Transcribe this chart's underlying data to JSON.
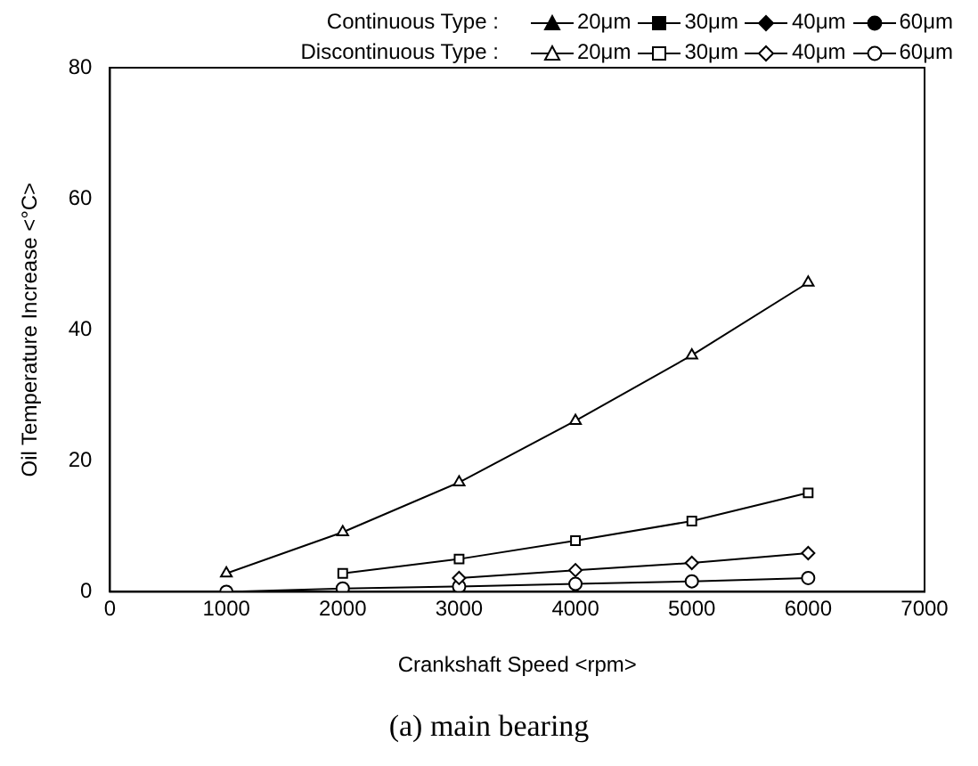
{
  "chart_data": {
    "type": "line",
    "xlabel": "Crankshaft Speed <rpm>",
    "ylabel": "Oil Temperature Increase <°C>",
    "x": [
      1000,
      2000,
      3000,
      4000,
      5000,
      6000
    ],
    "series": [
      {
        "name": "20μm",
        "color": "#000000",
        "marker": "triangle",
        "values": [
          null,
          null,
          null,
          null,
          null,
          null
        ]
      },
      {
        "name": "30μm",
        "color": "#000000",
        "marker": "square",
        "values": [
          null,
          null,
          null,
          null,
          null,
          null
        ]
      },
      {
        "name": "40μm",
        "color": "#000000",
        "marker": "diamond",
        "values": [
          null,
          null,
          null,
          null,
          null,
          null
        ]
      },
      {
        "name": "60μm",
        "color": "#000000",
        "marker": "circle",
        "values": [
          null,
          null,
          null,
          null,
          null,
          null
        ]
      },
      {
        "name": "20μm",
        "color": "#000000",
        "marker": "triangle",
        "values": [
          2.8,
          9.1,
          16.7,
          26.1,
          36.1,
          47.2
        ]
      },
      {
        "name": "30μm",
        "color": "#000000",
        "marker": "square",
        "values": [
          null,
          2.8,
          5.0,
          7.8,
          10.8,
          15.1
        ]
      },
      {
        "name": "40μm",
        "color": "#000000",
        "marker": "diamond",
        "values": [
          null,
          null,
          2.1,
          3.3,
          4.4,
          5.9
        ]
      },
      {
        "name": "60μm",
        "color": "#000000",
        "marker": "circle",
        "values": [
          0,
          0.5,
          0.8,
          1.2,
          1.6,
          2.1
        ]
      }
    ],
    "xlim": [
      0,
      7000
    ],
    "xticks": [
      0,
      1000,
      2000,
      3000,
      4000,
      5000,
      6000,
      7000
    ],
    "ylim": [
      0,
      80
    ],
    "yticks": [
      0,
      20,
      40,
      60,
      80
    ],
    "grid": false,
    "legend": "top right",
    "line_style": "solid",
    "annotations": [
      "Continuous Type :",
      "Discontinuous Type :",
      "(a) main bearing"
    ]
  }
}
